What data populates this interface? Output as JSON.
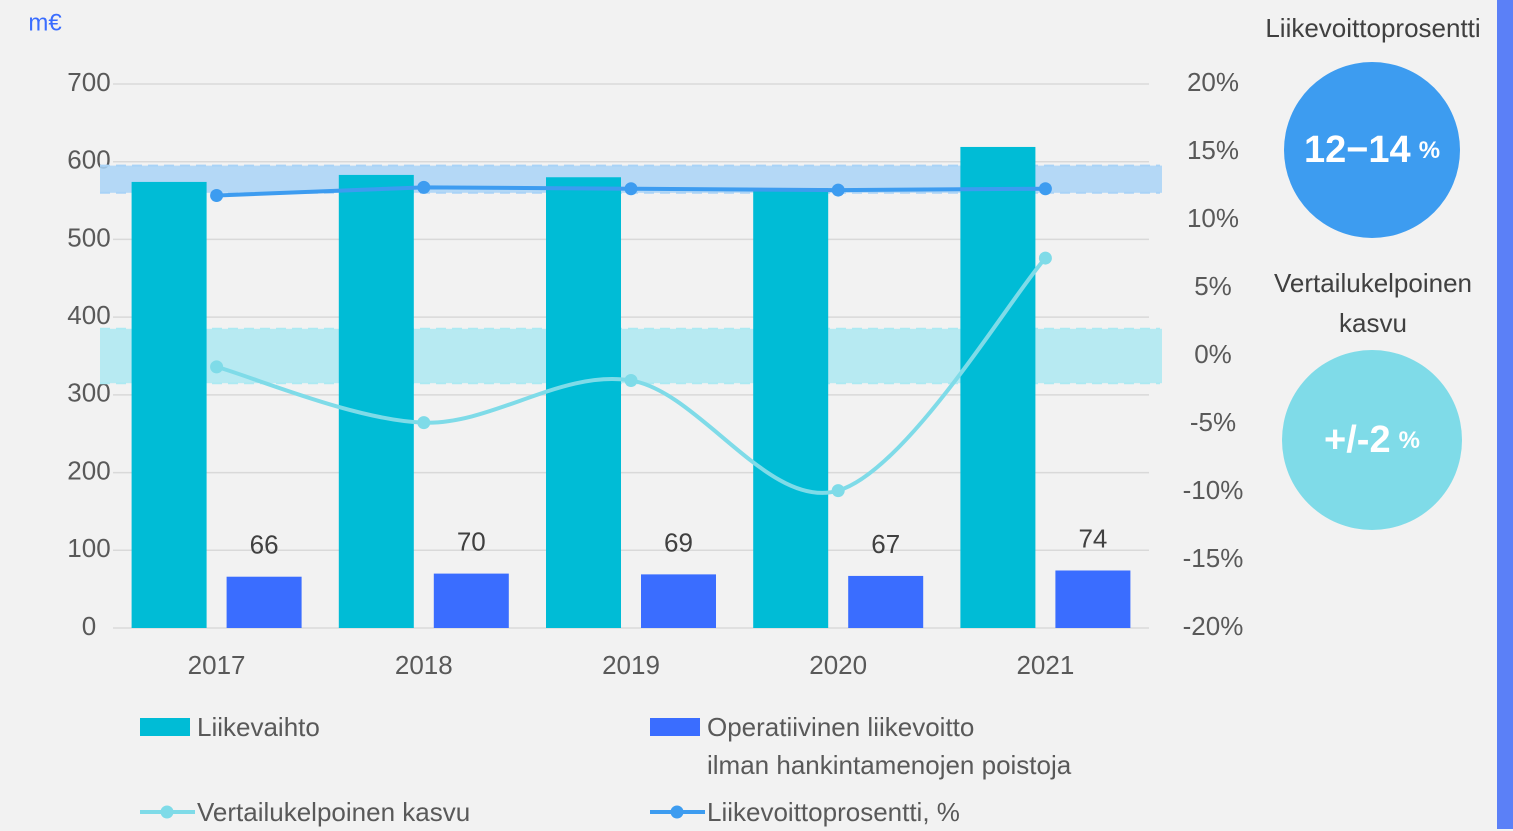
{
  "chart_data": {
    "type": "bar",
    "ylabel": "m€",
    "categories": [
      "2017",
      "2018",
      "2019",
      "2020",
      "2021"
    ],
    "ylim": [
      0,
      700
    ],
    "yticks": [
      0,
      100,
      200,
      300,
      400,
      500,
      600,
      700
    ],
    "y2lim": [
      -20,
      20
    ],
    "y2ticks": [
      {
        "value": -20,
        "label": "-20%"
      },
      {
        "value": -15,
        "label": "-15%"
      },
      {
        "value": -10,
        "label": "-10%"
      },
      {
        "value": -5,
        "label": "-5%"
      },
      {
        "value": 0,
        "label": "0%"
      },
      {
        "value": 5,
        "label": "5%"
      },
      {
        "value": 10,
        "label": "10%"
      },
      {
        "value": 15,
        "label": "15%"
      },
      {
        "value": 20,
        "label": "20%"
      }
    ],
    "grid": true,
    "series": [
      {
        "name": "Liikevaihto",
        "type": "bar",
        "color": "#00bcd6",
        "values": [
          574,
          583,
          580,
          566,
          619
        ]
      },
      {
        "name": "Operatiivinen liikevoitto\nilman hankintamenojen poistoja",
        "type": "bar",
        "color": "#3a6dff",
        "values": [
          66,
          70,
          69,
          67,
          74
        ],
        "value_labels": [
          "66",
          "70",
          "69",
          "67",
          "74"
        ]
      },
      {
        "name": "Vertailukelpoinen kasvu",
        "type": "line",
        "smooth": true,
        "axis": "y2",
        "color": "#7fdbe8",
        "values": [
          -0.8,
          -4.9,
          -1.8,
          -9.9,
          7.2
        ]
      },
      {
        "name": "Liikevoittoprosentti, %",
        "type": "line",
        "axis": "y2",
        "color": "#3d9cf0",
        "values": [
          11.8,
          12.4,
          12.3,
          12.2,
          12.3
        ]
      }
    ],
    "bands": [
      {
        "axis": "y2",
        "range": [
          12,
          14
        ],
        "color": "#a9d3f7"
      },
      {
        "axis": "y2",
        "range": [
          -2,
          2
        ],
        "color": "#ade9f2"
      }
    ],
    "annotations": [
      {
        "title": [
          "Liikevoittoprosentti"
        ],
        "value": "12−14",
        "unit": "%",
        "color": "#3d9cf0"
      },
      {
        "title": [
          "Vertailukelpoinen",
          "kasvu"
        ],
        "value": "+/-2",
        "unit": "%",
        "color": "#7fdbe8"
      }
    ]
  }
}
